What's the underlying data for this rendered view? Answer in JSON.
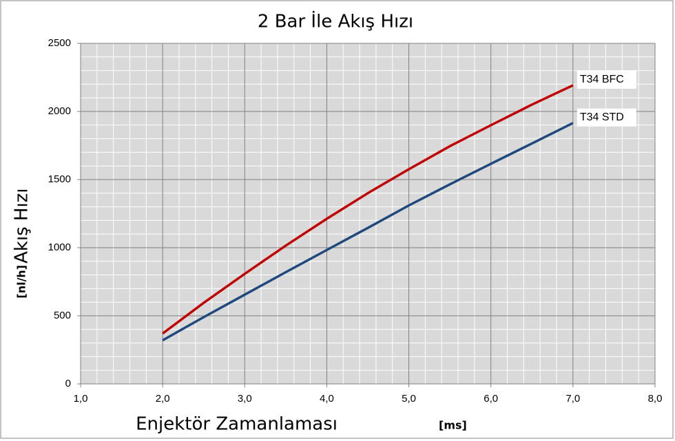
{
  "chart_data": {
    "type": "line",
    "title": "2 Bar İle Akış Hızı",
    "x_label": "Enjektör Zamanlaması",
    "x_label_unit": "[ms]",
    "y_label": "Akış Hızı",
    "y_label_unit": "[nl/h]",
    "x": [
      2.0,
      2.5,
      3.0,
      3.5,
      4.0,
      4.5,
      5.0,
      5.5,
      6.0,
      6.5,
      7.0
    ],
    "series": [
      {
        "name": "T34 BFC",
        "color": "#c00000",
        "values": [
          370,
          595,
          808,
          1015,
          1212,
          1400,
          1576,
          1745,
          1899,
          2050,
          2192
        ]
      },
      {
        "name": "T34 STD",
        "color": "#1f497d",
        "values": [
          320,
          490,
          655,
          820,
          983,
          1145,
          1310,
          1465,
          1616,
          1765,
          1915
        ]
      }
    ],
    "xlim": [
      1,
      8
    ],
    "xticks": [
      {
        "value": 1,
        "label": "1,0"
      },
      {
        "value": 2,
        "label": "2,0"
      },
      {
        "value": 3,
        "label": "3,0"
      },
      {
        "value": 4,
        "label": "4,0"
      },
      {
        "value": 5,
        "label": "5,0"
      },
      {
        "value": 6,
        "label": "6,0"
      },
      {
        "value": 7,
        "label": "7,0"
      },
      {
        "value": 8,
        "label": "8,0"
      }
    ],
    "ylim": [
      0,
      2500
    ],
    "yticks": [
      0,
      500,
      1000,
      1500,
      2000,
      2500
    ],
    "grid": true
  }
}
